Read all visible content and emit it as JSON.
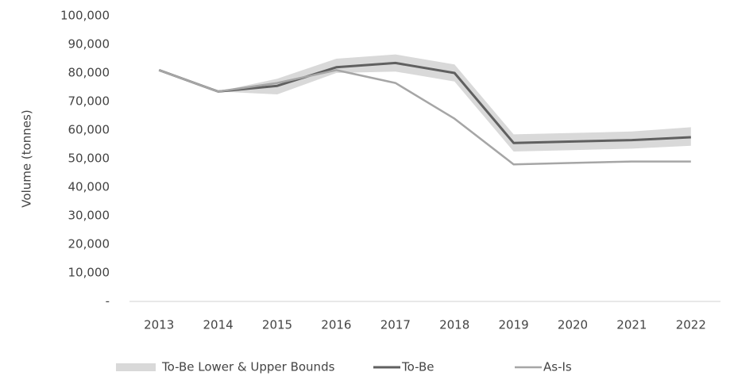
{
  "chart_data": {
    "type": "line",
    "y_label": "Volume (tonnes)",
    "categories": [
      "2013",
      "2014",
      "2015",
      "2016",
      "2017",
      "2018",
      "2019",
      "2020",
      "2021",
      "2022"
    ],
    "series": [
      {
        "name": "To-Be Lower & Upper Bounds",
        "color": "#d9d9d9",
        "lower": [
          81000,
          73500,
          72500,
          80000,
          80500,
          77000,
          52500,
          53000,
          53500,
          54500
        ],
        "upper": [
          81000,
          73500,
          78000,
          85000,
          86500,
          83000,
          58500,
          59000,
          59500,
          61000
        ]
      },
      {
        "name": "To-Be",
        "color": "#606060",
        "values": [
          81000,
          73500,
          75500,
          82000,
          83500,
          80000,
          55500,
          56000,
          56500,
          57500
        ]
      },
      {
        "name": "As-Is",
        "color": "#a6a6a6",
        "values": [
          81000,
          73500,
          76500,
          81000,
          76500,
          64000,
          48000,
          48500,
          49000,
          49000
        ]
      }
    ],
    "ylim": [
      0,
      100000
    ],
    "yticks": [
      {
        "value": 0,
        "label": "-"
      },
      {
        "value": 10000,
        "label": "10,000"
      },
      {
        "value": 20000,
        "label": "20,000"
      },
      {
        "value": 30000,
        "label": "30,000"
      },
      {
        "value": 40000,
        "label": "40,000"
      },
      {
        "value": 50000,
        "label": "50,000"
      },
      {
        "value": 60000,
        "label": "60,000"
      },
      {
        "value": 70000,
        "label": "70,000"
      },
      {
        "value": 80000,
        "label": "80,000"
      },
      {
        "value": 90000,
        "label": "90,000"
      },
      {
        "value": 100000,
        "label": "100,000"
      }
    ],
    "grid": false
  }
}
